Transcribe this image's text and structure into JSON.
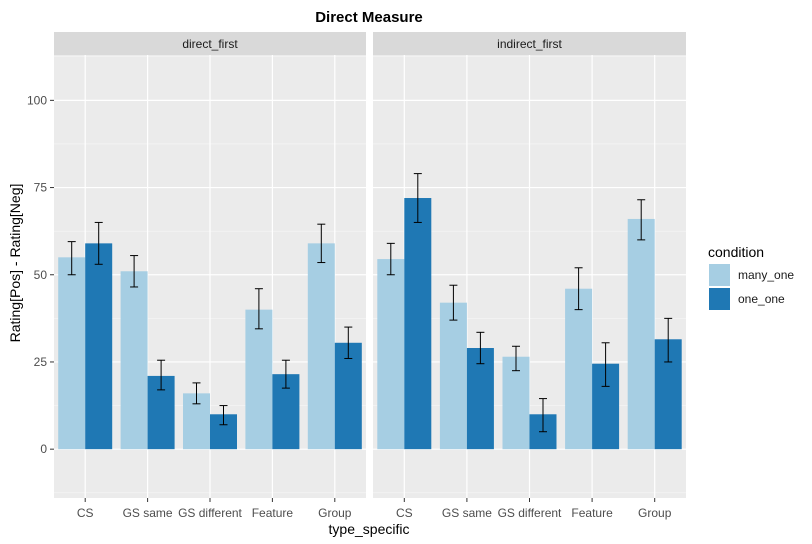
{
  "chart_data": {
    "type": "bar",
    "title": "Direct Measure",
    "xlabel": "type_specific",
    "ylabel": "Rating[Pos] - Rating[Neg]",
    "ylim": [
      -14,
      113
    ],
    "yticks": [
      0,
      25,
      50,
      75,
      100
    ],
    "categories": [
      "CS",
      "GS same",
      "GS different",
      "Feature",
      "Group"
    ],
    "legend": {
      "title": "condition",
      "position": "right"
    },
    "series_colors": {
      "many_one": "#a6cee3",
      "one_one": "#1f78b4"
    },
    "panels": [
      {
        "name": "direct_first",
        "series": [
          {
            "name": "many_one",
            "values": [
              55,
              51,
              16,
              40,
              59
            ],
            "err_low": [
              50,
              46.5,
              13,
              34.5,
              53.5
            ],
            "err_high": [
              59.5,
              55.5,
              19,
              46,
              64.5
            ]
          },
          {
            "name": "one_one",
            "values": [
              59,
              21,
              10,
              21.5,
              30.5
            ],
            "err_low": [
              53,
              17,
              7,
              17.5,
              26
            ],
            "err_high": [
              65,
              25.5,
              12.5,
              25.5,
              35
            ]
          }
        ]
      },
      {
        "name": "indirect_first",
        "series": [
          {
            "name": "many_one",
            "values": [
              54.5,
              42,
              26.5,
              46,
              66
            ],
            "err_low": [
              50,
              37,
              22.5,
              40,
              60
            ],
            "err_high": [
              59,
              47,
              29.5,
              52,
              71.5
            ]
          },
          {
            "name": "one_one",
            "values": [
              72,
              29,
              10,
              24.5,
              31.5
            ],
            "err_low": [
              65,
              24.5,
              5,
              18,
              25
            ],
            "err_high": [
              79,
              33.5,
              14.5,
              30.5,
              37.5
            ]
          }
        ]
      }
    ]
  }
}
